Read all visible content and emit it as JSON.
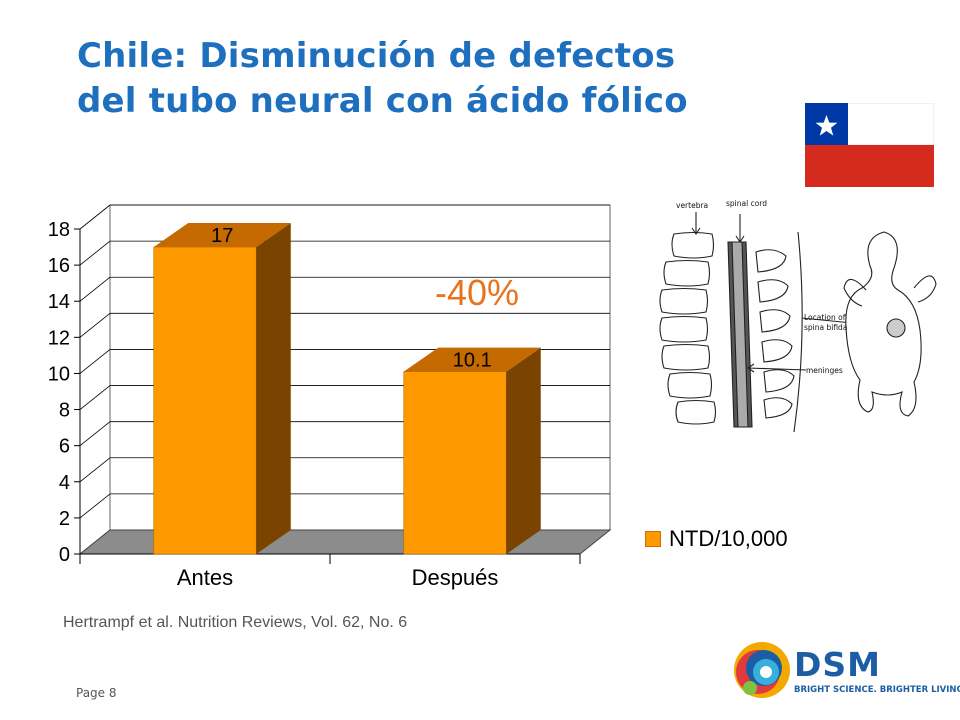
{
  "slide": {
    "title_line1": "Chile: Disminución de defectos",
    "title_line2": "del tubo neural con ácido fólico",
    "citation": "Hertrampf et al. Nutrition Reviews, Vol. 62, No. 6",
    "page_label": "Page 8"
  },
  "annotation": {
    "text": "-40%",
    "color": "#e8731c"
  },
  "diagram_labels": {
    "vertebra": "vertebra",
    "spinal_cord": "spinal cord",
    "location": "Location of",
    "location2": "spina bifida",
    "meninges": "meninges"
  },
  "logo": {
    "name": "DSM",
    "tagline": "BRIGHT SCIENCE. BRIGHTER LIVING."
  },
  "colors": {
    "title": "#1f6fbf",
    "bar_front": "#ff9900",
    "bar_side": "#7a4300",
    "bar_top": "#c46a00",
    "floor": "#8c8c8c",
    "flag_red": "#d52b1e",
    "flag_blue": "#0039a6"
  },
  "chart_data": {
    "type": "bar",
    "categories": [
      "Antes",
      "Después"
    ],
    "series": [
      {
        "name": "NTD/10,000",
        "values": [
          17,
          10.1
        ]
      }
    ],
    "data_labels": [
      "17",
      "10.1"
    ],
    "ylim": [
      0,
      18
    ],
    "yticks": [
      0,
      2,
      4,
      6,
      8,
      10,
      12,
      14,
      16,
      18
    ],
    "grid": true,
    "legend": "right",
    "style": "3d-bar"
  }
}
